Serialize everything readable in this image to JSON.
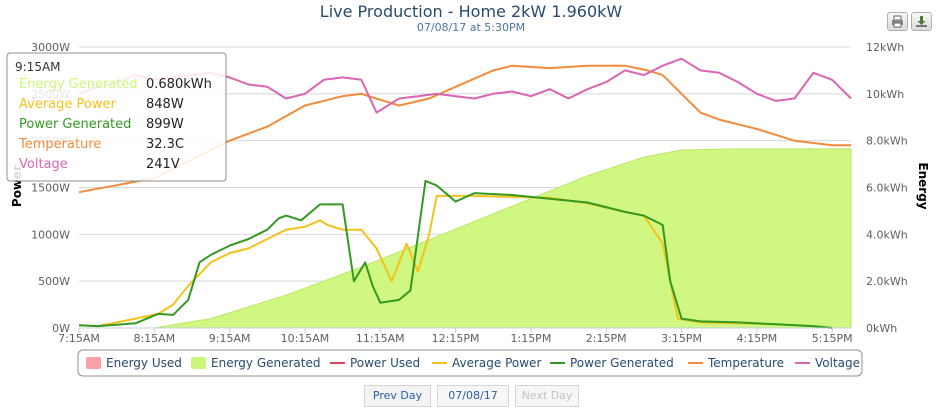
{
  "chart_data": {
    "type": "line",
    "title": "Live Production - Home 2kW 1.960kW",
    "subtitle": "07/08/17 at 5:30PM",
    "x_ticks": [
      "7:15AM",
      "8:15AM",
      "9:15AM",
      "10:15AM",
      "11:15AM",
      "12:15PM",
      "1:15PM",
      "2:15PM",
      "3:15PM",
      "4:15PM",
      "5:15PM"
    ],
    "x_ticks_hours": [
      7.25,
      8.25,
      9.25,
      10.25,
      11.25,
      12.25,
      13.25,
      14.25,
      15.25,
      16.25,
      17.25
    ],
    "x_range_hours": [
      7.25,
      17.5
    ],
    "y_left": {
      "label": "Power",
      "range": [
        0,
        3000
      ],
      "ticks": [
        "0W",
        "500W",
        "1000W",
        "1500W",
        "2000W",
        "2500W",
        "3000W"
      ],
      "values": [
        0,
        500,
        1000,
        1500,
        2000,
        2500,
        3000
      ]
    },
    "y_right": {
      "label": "Energy",
      "range": [
        0,
        12
      ],
      "ticks": [
        "0kWh",
        "2.0kWh",
        "4.0kWh",
        "6.0kWh",
        "8.0kWh",
        "10kWh",
        "12kWh"
      ],
      "values": [
        0,
        2,
        4,
        6,
        8,
        10,
        12
      ]
    },
    "grid": true,
    "legend_position": "bottom",
    "series": [
      {
        "name": "Energy Used",
        "type": "area",
        "color": "#f7a1a8",
        "axis": "right",
        "points": []
      },
      {
        "name": "Energy Generated",
        "type": "area",
        "color": "#ccf77a",
        "axis": "right",
        "points": [
          [
            8.25,
            0.0
          ],
          [
            9.0,
            0.4
          ],
          [
            10.0,
            1.4
          ],
          [
            11.0,
            2.6
          ],
          [
            12.0,
            3.9
          ],
          [
            13.0,
            5.2
          ],
          [
            14.0,
            6.5
          ],
          [
            14.75,
            7.3
          ],
          [
            15.25,
            7.6
          ],
          [
            16.0,
            7.65
          ],
          [
            17.5,
            7.65
          ]
        ]
      },
      {
        "name": "Power Used",
        "type": "line",
        "color": "#e0455a",
        "axis": "left",
        "points": []
      },
      {
        "name": "Average Power",
        "type": "line",
        "color": "#f5c21a",
        "axis": "left",
        "points": [
          [
            7.25,
            30
          ],
          [
            7.5,
            20
          ],
          [
            8.0,
            100
          ],
          [
            8.3,
            150
          ],
          [
            8.5,
            250
          ],
          [
            8.7,
            450
          ],
          [
            9.0,
            700
          ],
          [
            9.25,
            800
          ],
          [
            9.5,
            850
          ],
          [
            9.75,
            950
          ],
          [
            10.0,
            1050
          ],
          [
            10.25,
            1080
          ],
          [
            10.45,
            1150
          ],
          [
            10.55,
            1100
          ],
          [
            10.75,
            1050
          ],
          [
            11.0,
            1050
          ],
          [
            11.2,
            850
          ],
          [
            11.4,
            500
          ],
          [
            11.5,
            700
          ],
          [
            11.6,
            900
          ],
          [
            11.75,
            600
          ],
          [
            11.9,
            1000
          ],
          [
            12.0,
            1410
          ],
          [
            12.5,
            1410
          ],
          [
            13.0,
            1400
          ],
          [
            13.5,
            1390
          ],
          [
            14.0,
            1330
          ],
          [
            14.5,
            1240
          ],
          [
            14.75,
            1200
          ],
          [
            15.0,
            900
          ],
          [
            15.2,
            100
          ],
          [
            15.5,
            60
          ],
          [
            16.0,
            50
          ],
          [
            16.5,
            40
          ],
          [
            17.0,
            20
          ],
          [
            17.25,
            0
          ]
        ]
      },
      {
        "name": "Power Generated",
        "type": "line",
        "color": "#339922",
        "axis": "left",
        "points": [
          [
            7.25,
            30
          ],
          [
            7.5,
            20
          ],
          [
            8.0,
            50
          ],
          [
            8.3,
            150
          ],
          [
            8.5,
            140
          ],
          [
            8.7,
            300
          ],
          [
            8.85,
            700
          ],
          [
            9.0,
            780
          ],
          [
            9.25,
            880
          ],
          [
            9.5,
            950
          ],
          [
            9.75,
            1050
          ],
          [
            9.9,
            1170
          ],
          [
            10.0,
            1200
          ],
          [
            10.2,
            1150
          ],
          [
            10.45,
            1320
          ],
          [
            10.75,
            1320
          ],
          [
            10.9,
            500
          ],
          [
            11.05,
            700
          ],
          [
            11.15,
            450
          ],
          [
            11.25,
            270
          ],
          [
            11.5,
            300
          ],
          [
            11.65,
            400
          ],
          [
            11.85,
            1570
          ],
          [
            12.0,
            1520
          ],
          [
            12.25,
            1350
          ],
          [
            12.5,
            1440
          ],
          [
            13.0,
            1420
          ],
          [
            13.5,
            1380
          ],
          [
            14.0,
            1340
          ],
          [
            14.5,
            1240
          ],
          [
            14.75,
            1200
          ],
          [
            15.0,
            1100
          ],
          [
            15.1,
            500
          ],
          [
            15.25,
            100
          ],
          [
            15.5,
            70
          ],
          [
            16.0,
            60
          ],
          [
            16.5,
            40
          ],
          [
            17.0,
            20
          ],
          [
            17.25,
            0
          ]
        ]
      },
      {
        "name": "Temperature",
        "type": "line",
        "color": "#f28c3c",
        "axis": "right",
        "points": [
          [
            7.25,
            5.8
          ],
          [
            7.75,
            6.1
          ],
          [
            8.25,
            6.4
          ],
          [
            8.75,
            7.2
          ],
          [
            9.25,
            8.0
          ],
          [
            9.75,
            8.6
          ],
          [
            10.25,
            9.5
          ],
          [
            10.75,
            9.9
          ],
          [
            11.0,
            10.0
          ],
          [
            11.3,
            9.7
          ],
          [
            11.5,
            9.5
          ],
          [
            11.9,
            9.8
          ],
          [
            12.25,
            10.3
          ],
          [
            12.75,
            11.0
          ],
          [
            13.0,
            11.2
          ],
          [
            13.5,
            11.1
          ],
          [
            14.0,
            11.2
          ],
          [
            14.5,
            11.2
          ],
          [
            14.8,
            11.0
          ],
          [
            15.0,
            10.8
          ],
          [
            15.25,
            10.0
          ],
          [
            15.5,
            9.2
          ],
          [
            15.75,
            8.9
          ],
          [
            16.25,
            8.5
          ],
          [
            16.75,
            8.0
          ],
          [
            17.25,
            7.8
          ],
          [
            17.5,
            7.8
          ]
        ]
      },
      {
        "name": "Voltage",
        "type": "line",
        "color": "#d966b3",
        "axis": "right",
        "points": [
          [
            7.25,
            10.0
          ],
          [
            7.5,
            10.3
          ],
          [
            7.75,
            10.5
          ],
          [
            8.0,
            10.8
          ],
          [
            8.25,
            10.6
          ],
          [
            8.5,
            10.7
          ],
          [
            8.75,
            10.8
          ],
          [
            9.0,
            10.9
          ],
          [
            9.25,
            10.7
          ],
          [
            9.5,
            10.4
          ],
          [
            9.75,
            10.3
          ],
          [
            10.0,
            9.8
          ],
          [
            10.25,
            10.0
          ],
          [
            10.5,
            10.6
          ],
          [
            10.75,
            10.7
          ],
          [
            11.0,
            10.6
          ],
          [
            11.2,
            9.2
          ],
          [
            11.5,
            9.8
          ],
          [
            11.75,
            9.9
          ],
          [
            12.0,
            10.0
          ],
          [
            12.25,
            9.9
          ],
          [
            12.5,
            9.8
          ],
          [
            12.75,
            10.0
          ],
          [
            13.0,
            10.1
          ],
          [
            13.25,
            9.9
          ],
          [
            13.5,
            10.2
          ],
          [
            13.75,
            9.8
          ],
          [
            14.0,
            10.2
          ],
          [
            14.25,
            10.5
          ],
          [
            14.5,
            11.0
          ],
          [
            14.75,
            10.8
          ],
          [
            15.0,
            11.2
          ],
          [
            15.25,
            11.5
          ],
          [
            15.5,
            11.0
          ],
          [
            15.75,
            10.9
          ],
          [
            16.0,
            10.5
          ],
          [
            16.25,
            10.0
          ],
          [
            16.5,
            9.7
          ],
          [
            16.75,
            9.8
          ],
          [
            17.0,
            10.9
          ],
          [
            17.25,
            10.6
          ],
          [
            17.5,
            9.8
          ]
        ]
      }
    ],
    "tooltip": {
      "time": "9:15AM",
      "rows": [
        {
          "name": "Energy Generated",
          "value": "0.680kWh",
          "color": "#ccf77a"
        },
        {
          "name": "Average Power",
          "value": "848W",
          "color": "#f5c21a"
        },
        {
          "name": "Power Generated",
          "value": "899W",
          "color": "#339922"
        },
        {
          "name": "Temperature",
          "value": "32.3C",
          "color": "#f28c3c"
        },
        {
          "name": "Voltage",
          "value": "241V",
          "color": "#d966b3"
        }
      ]
    }
  },
  "toolbar": {
    "print_icon": "printer-icon",
    "export_icon": "download-icon"
  },
  "nav": {
    "prev_label": "Prev Day",
    "date_label": "07/08/17",
    "next_label": "Next Day"
  }
}
